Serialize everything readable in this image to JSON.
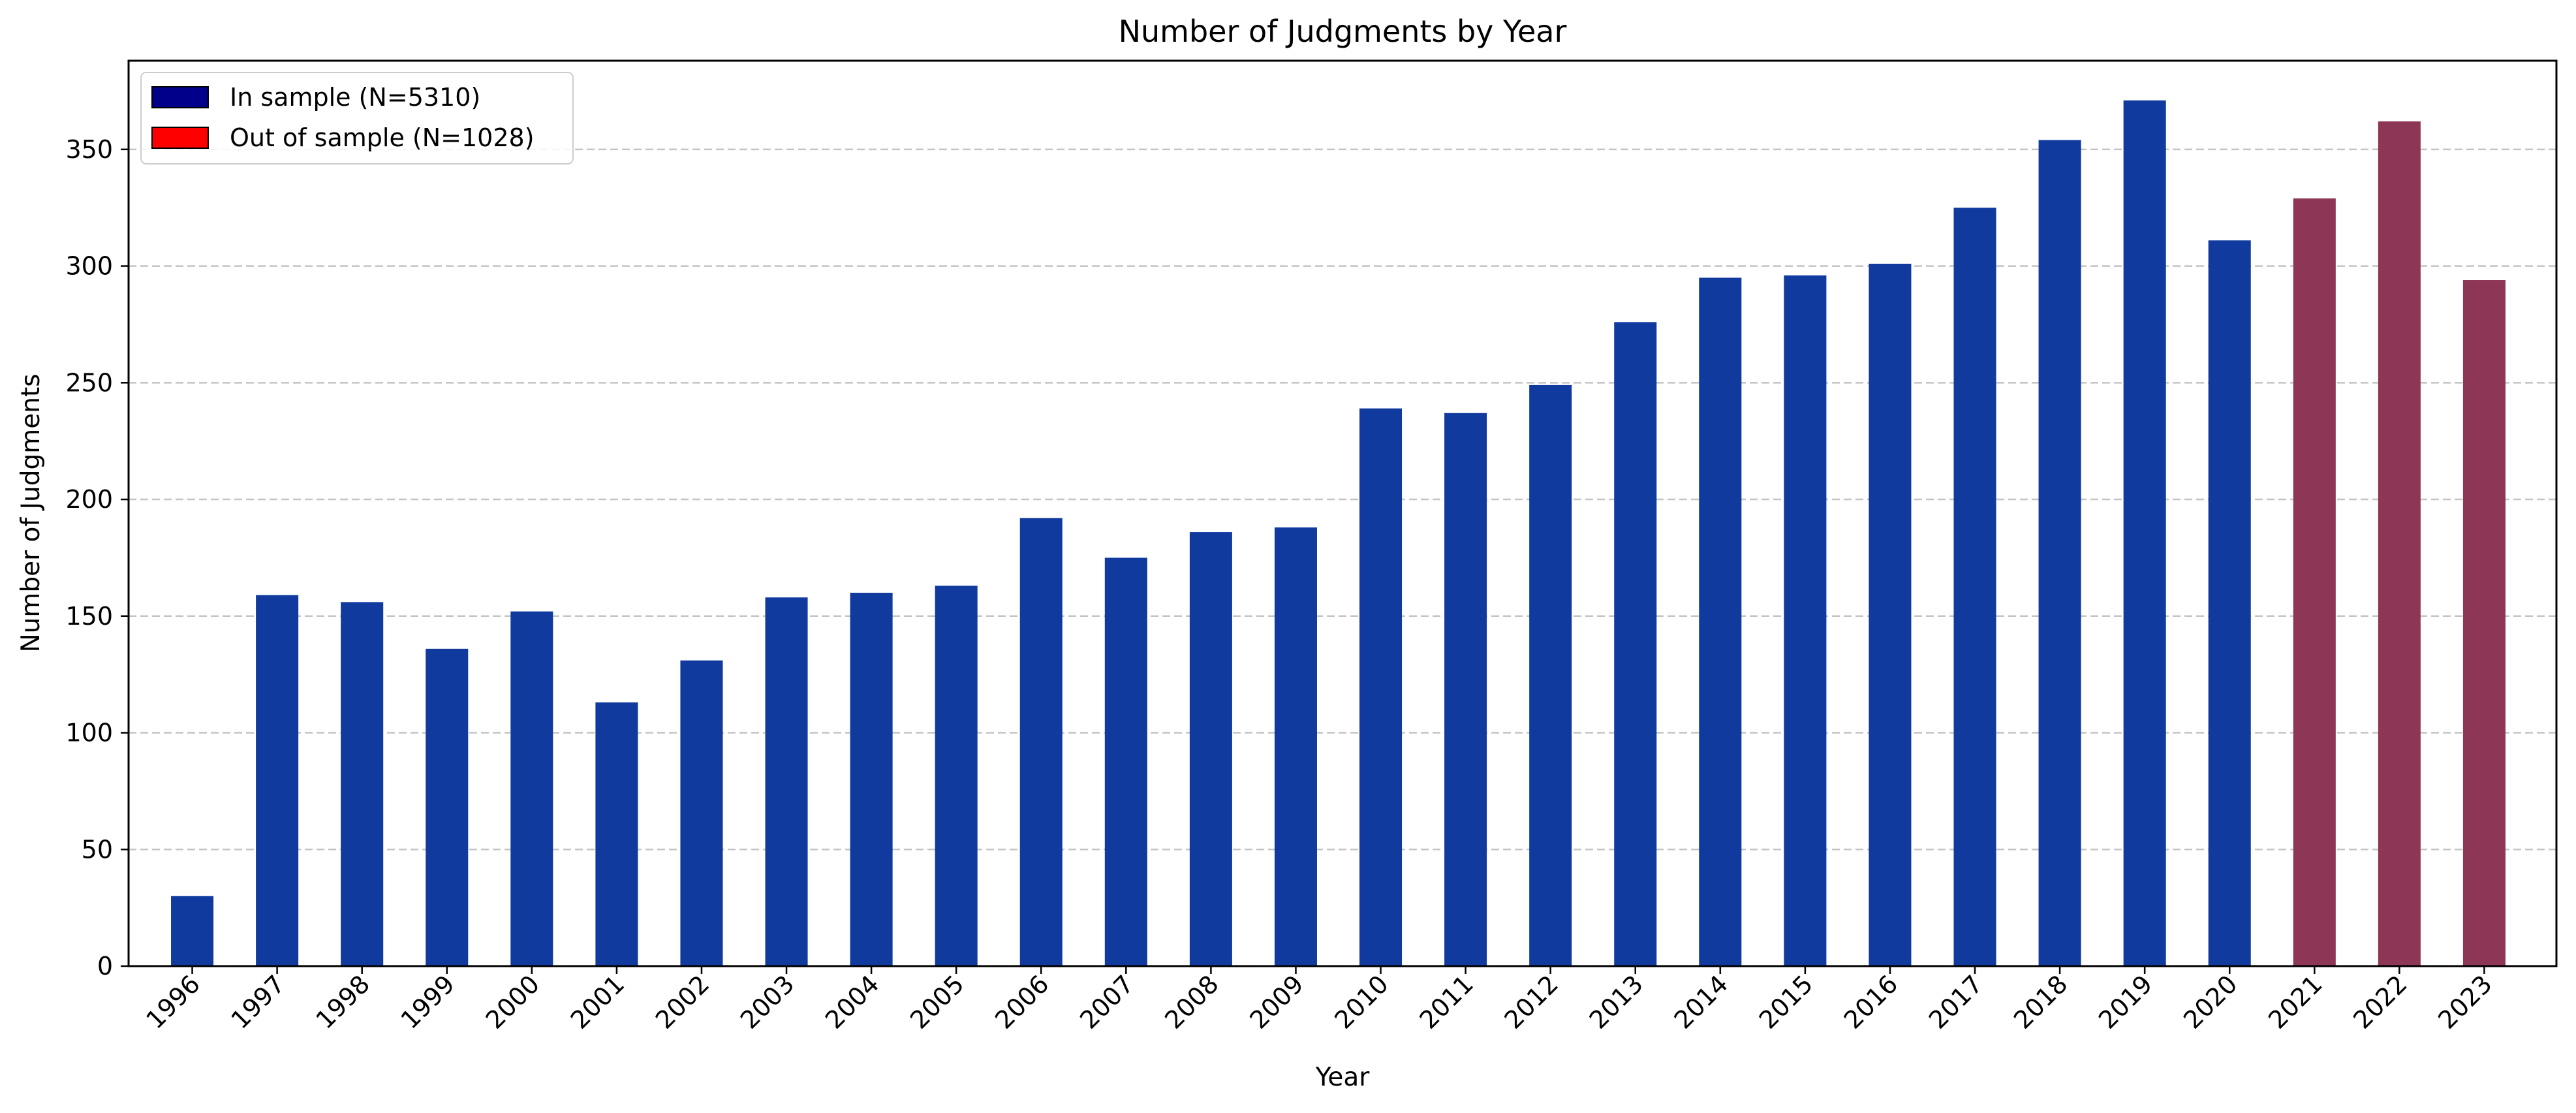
{
  "chart_data": {
    "type": "bar",
    "title": "Number of Judgments by Year",
    "xlabel": "Year",
    "ylabel": "Number of Judgments",
    "ylim": [
      0,
      388
    ],
    "yticks": [
      0,
      50,
      100,
      150,
      200,
      250,
      300,
      350
    ],
    "grid": "horizontal dashed",
    "legend_placement": "top-left",
    "categories": [
      "1996",
      "1997",
      "1998",
      "1999",
      "2000",
      "2001",
      "2002",
      "2003",
      "2004",
      "2005",
      "2006",
      "2007",
      "2008",
      "2009",
      "2010",
      "2011",
      "2012",
      "2013",
      "2014",
      "2015",
      "2016",
      "2017",
      "2018",
      "2019",
      "2020",
      "2021",
      "2022",
      "2023"
    ],
    "values": [
      30,
      159,
      156,
      136,
      152,
      113,
      131,
      158,
      160,
      163,
      192,
      175,
      186,
      188,
      239,
      237,
      249,
      276,
      295,
      296,
      301,
      325,
      354,
      371,
      311,
      329,
      362,
      294
    ],
    "groups": [
      "in",
      "in",
      "in",
      "in",
      "in",
      "in",
      "in",
      "in",
      "in",
      "in",
      "in",
      "in",
      "in",
      "in",
      "in",
      "in",
      "in",
      "in",
      "in",
      "in",
      "in",
      "in",
      "in",
      "in",
      "in",
      "out",
      "out",
      "out"
    ],
    "legend": [
      {
        "key": "in",
        "label": "In sample (N=5310)",
        "swatch_color": "#00008b",
        "bar_color": "#103a9e"
      },
      {
        "key": "out",
        "label": "Out of sample (N=1028)",
        "swatch_color": "#ff0000",
        "bar_color": "#8e3656"
      }
    ]
  }
}
